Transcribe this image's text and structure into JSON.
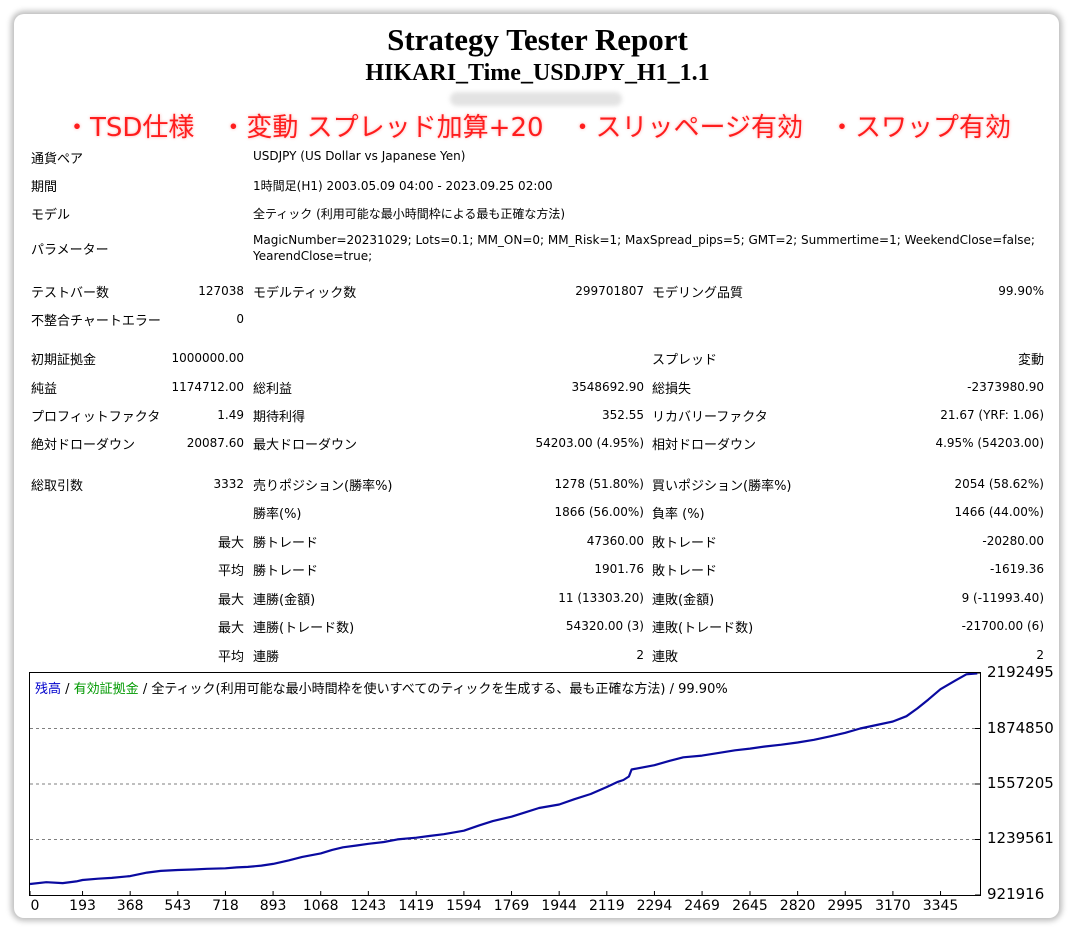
{
  "report": {
    "title": "Strategy Tester Report",
    "subtitle": "HIKARI_Time_USDJPY_H1_1.1",
    "banner": "・TSD仕様　・変動 スプレッド加算+20　・スリッページ有効　・スワップ有効"
  },
  "info": {
    "pair_label": "通貨ペア",
    "pair_value": "USDJPY (US Dollar vs Japanese Yen)",
    "period_label": "期間",
    "period_value": "1時間足(H1) 2003.05.09 04:00 - 2023.09.25 02:00",
    "model_label": "モデル",
    "model_value": "全ティック (利用可能な最小時間枠による最も正確な方法)",
    "params_label": "パラメーター",
    "params_line1": "MagicNumber=20231029; Lots=0.1; MM_ON=0; MM_Risk=1; MaxSpread_pips=5; GMT=2; Summertime=1; WeekendClose=false;",
    "params_line2": "YearendClose=true;"
  },
  "stats": {
    "bars_label": "テストバー数",
    "bars_value": "127038",
    "ticks_label": "モデルティック数",
    "ticks_value": "299701807",
    "quality_label": "モデリング品質",
    "quality_value": "99.90%",
    "mismatch_label": "不整合チャートエラー",
    "mismatch_value": "0",
    "deposit_label": "初期証拠金",
    "deposit_value": "1000000.00",
    "spread_label": "スプレッド",
    "spread_value": "変動",
    "net_label": "純益",
    "net_value": "1174712.00",
    "gross_profit_label": "総利益",
    "gross_profit_value": "3548692.90",
    "gross_loss_label": "総損失",
    "gross_loss_value": "-2373980.90",
    "pf_label": "プロフィットファクタ",
    "pf_value": "1.49",
    "payoff_label": "期待利得",
    "payoff_value": "352.55",
    "recovery_label": "リカバリーファクタ",
    "recovery_value": "21.67 (YRF: 1.06)",
    "abs_dd_label": "絶対ドローダウン",
    "abs_dd_value": "20087.60",
    "max_dd_label": "最大ドローダウン",
    "max_dd_value": "54203.00 (4.95%)",
    "rel_dd_label": "相対ドローダウン",
    "rel_dd_value": "4.95% (54203.00)",
    "trades_label": "総取引数",
    "trades_value": "3332",
    "short_label": "売りポジション(勝率%)",
    "short_value": "1278 (51.80%)",
    "long_label": "買いポジション(勝率%)",
    "long_value": "2054 (58.62%)",
    "win_pct_label": "勝率(%)",
    "win_pct_value": "1866 (56.00%)",
    "loss_pct_label": "負率 (%)",
    "loss_pct_value": "1466 (44.00%)",
    "max1_label": "最大",
    "largest_win_label": "勝トレード",
    "largest_win_value": "47360.00",
    "largest_loss_label": "敗トレード",
    "largest_loss_value": "-20280.00",
    "avg1_label": "平均",
    "avg_win_label": "勝トレード",
    "avg_win_value": "1901.76",
    "avg_loss_label": "敗トレード",
    "avg_loss_value": "-1619.36",
    "max2_label": "最大",
    "cons_wins_amt_label": "連勝(金額)",
    "cons_wins_amt_value": "11 (13303.20)",
    "cons_loss_amt_label": "連敗(金額)",
    "cons_loss_amt_value": "9 (-11993.40)",
    "max3_label": "最大",
    "cons_wins_cnt_label": "連勝(トレード数)",
    "cons_wins_cnt_value": "54320.00 (3)",
    "cons_loss_cnt_label": "連敗(トレード数)",
    "cons_loss_cnt_value": "-21700.00 (6)",
    "avg2_label": "平均",
    "avg_cons_wins_label": "連勝",
    "avg_cons_wins_value": "2",
    "avg_cons_loss_label": "連敗",
    "avg_cons_loss_value": "2"
  },
  "legend": {
    "balance": "残高",
    "sep1": " / ",
    "equity": "有効証拠金",
    "rest": " / 全ティック(利用可能な最小時間枠を使いすべてのティックを生成する、最も正確な方法) / 99.90%"
  },
  "colors": {
    "balance_line": "#0a0aa0",
    "balance_legend": "#0000cc",
    "equity_legend": "#009900",
    "grid": "#7f7f7f",
    "banner": "#ff1d1d"
  },
  "chart_data": {
    "type": "line",
    "title": "",
    "xlabel": "",
    "ylabel": "",
    "x_ticks": [
      "0",
      "193",
      "368",
      "543",
      "718",
      "893",
      "1068",
      "1243",
      "1419",
      "1594",
      "1769",
      "1944",
      "2119",
      "2294",
      "2469",
      "2645",
      "2820",
      "2995",
      "3170",
      "3345"
    ],
    "y_ticks": [
      "2192495",
      "1874850",
      "1557205",
      "1239561",
      "921916"
    ],
    "xlim": [
      0,
      3490
    ],
    "ylim": [
      921916,
      2192495
    ],
    "grid": true,
    "series": [
      {
        "name": "残高",
        "x": [
          0,
          60,
          120,
          170,
          193,
          250,
          300,
          368,
          430,
          480,
          543,
          600,
          650,
          718,
          760,
          800,
          850,
          893,
          950,
          1000,
          1068,
          1110,
          1150,
          1200,
          1243,
          1300,
          1350,
          1419,
          1470,
          1520,
          1594,
          1650,
          1700,
          1769,
          1820,
          1870,
          1944,
          2000,
          2060,
          2119,
          2160,
          2180,
          2200,
          2210,
          2294,
          2350,
          2400,
          2469,
          2530,
          2590,
          2645,
          2700,
          2760,
          2820,
          2880,
          2940,
          2995,
          3050,
          3110,
          3170,
          3220,
          3260,
          3300,
          3345,
          3400,
          3440,
          3480
        ],
        "y": [
          985000,
          995000,
          990000,
          1000000,
          1008000,
          1015000,
          1020000,
          1030000,
          1050000,
          1060000,
          1065000,
          1068000,
          1072000,
          1075000,
          1080000,
          1083000,
          1090000,
          1100000,
          1120000,
          1140000,
          1160000,
          1180000,
          1195000,
          1205000,
          1215000,
          1225000,
          1240000,
          1250000,
          1260000,
          1270000,
          1290000,
          1320000,
          1345000,
          1370000,
          1395000,
          1420000,
          1440000,
          1470000,
          1500000,
          1540000,
          1570000,
          1580000,
          1600000,
          1640000,
          1665000,
          1690000,
          1710000,
          1720000,
          1735000,
          1750000,
          1760000,
          1772000,
          1782000,
          1795000,
          1810000,
          1830000,
          1850000,
          1875000,
          1895000,
          1915000,
          1945000,
          1990000,
          2040000,
          2100000,
          2150000,
          2185000,
          2190000
        ]
      }
    ]
  }
}
